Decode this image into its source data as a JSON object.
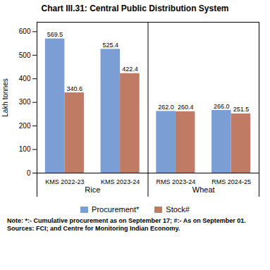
{
  "chart_data": {
    "type": "bar",
    "title": "Chart III.31: Central Public Distribution System",
    "categories": [
      "KMS 2022-23",
      "KMS 2023-24",
      "RMS 2023-24",
      "RMS 2024-25"
    ],
    "series": [
      {
        "name": "Procurement*",
        "color": "#7B9FD4",
        "values": [
          569.5,
          525.4,
          262.0,
          266.0
        ],
        "value_labels": [
          "569.5",
          "525.4",
          "262.0",
          "266.0"
        ]
      },
      {
        "name": "Stock#",
        "color": "#C07B65",
        "values": [
          340.6,
          422.4,
          260.4,
          251.5
        ],
        "value_labels": [
          "340.6",
          "422.4",
          "260.4",
          "251.5"
        ]
      }
    ],
    "category_groups": [
      {
        "name": "Rice",
        "categories": [
          "KMS 2022-23",
          "KMS 2023-24"
        ]
      },
      {
        "name": "Wheat",
        "categories": [
          "RMS 2023-24",
          "RMS 2024-25"
        ]
      }
    ],
    "ylabel": "Lakh tonnes",
    "ylim": [
      0,
      640
    ],
    "yticks": [
      0,
      100,
      200,
      300,
      400,
      500,
      600
    ],
    "data_labels": true,
    "grid": false,
    "legend": "bottom",
    "notes": [
      "Note: *:- Cumulative procurement as on September 17; #:- As on September 01.",
      "Sources: FCI; and Centre for Monitoring Indian Economy."
    ]
  }
}
